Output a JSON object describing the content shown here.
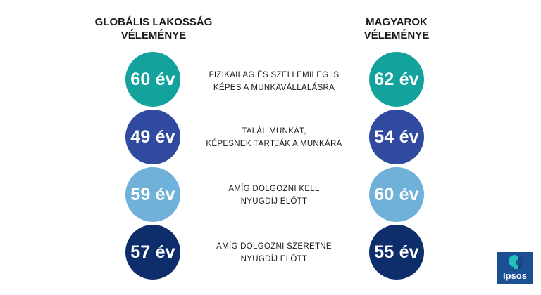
{
  "headers": {
    "global": [
      "GLOBÁLIS LAKOSSÁG",
      "VÉLEMÉNYE"
    ],
    "hungarian": [
      "MAGYAROK",
      "VÉLEMÉNYE"
    ]
  },
  "rows": [
    {
      "global": "60 év",
      "hungarian": "62 év",
      "desc": [
        "FIZIKAILAG ÉS SZELLEMILEG IS",
        "KÉPES A MUNKAVÁLLALÁSRA"
      ],
      "color": "#14a39c"
    },
    {
      "global": "49 év",
      "hungarian": "54 év",
      "desc": [
        "TALÁL MUNKÁT,",
        "KÉPESNEK TARTJÁK A MUNKÁRA"
      ],
      "color": "#2f4a9f"
    },
    {
      "global": "59 év",
      "hungarian": "60 év",
      "desc": [
        "AMÍG DOLGOZNI KELL",
        "NYUGDÍJ ELŐTT"
      ],
      "color": "#70b1d9"
    },
    {
      "global": "57 év",
      "hungarian": "55 év",
      "desc": [
        "AMÍG DOLGOZNI SZERETNE",
        "NYUGDÍJ ELŐTT"
      ],
      "color": "#0d2d6b"
    }
  ],
  "logo": {
    "text": "Ipsos",
    "color": "#1c4f94",
    "accent": "#21c0b8"
  }
}
